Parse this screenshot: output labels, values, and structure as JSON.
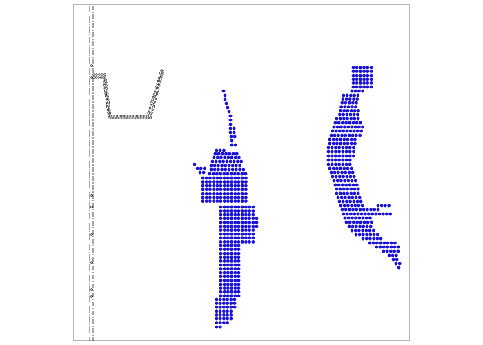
{
  "colors": {
    "background": "#ffffff",
    "frame_border": "#b4b4b4",
    "player_dots": "#1a12d6",
    "rail_outline": "#222222"
  },
  "elements": {
    "frame": "play-area",
    "rail": "left-rail-track",
    "basket": "hoop-basket-outline",
    "player_left": "dotted-figure-shooting",
    "player_right": "dotted-figure-leaping"
  }
}
